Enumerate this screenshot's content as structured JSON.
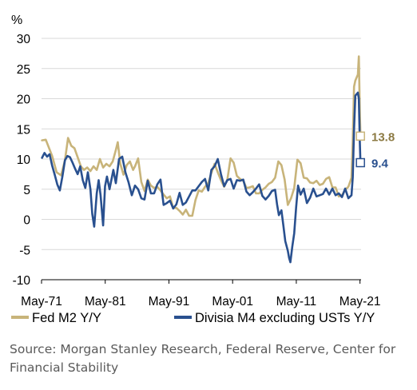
{
  "chart_data": {
    "type": "line",
    "ylabel": "%",
    "ylim": [
      -10,
      30
    ],
    "yticks": [
      -10,
      -5,
      0,
      5,
      10,
      15,
      20,
      25,
      30
    ],
    "xlim": [
      1971.33,
      2021.5
    ],
    "xticks": [
      {
        "x": 1971.33,
        "label": "May-71"
      },
      {
        "x": 1981.33,
        "label": "May-81"
      },
      {
        "x": 1991.33,
        "label": "May-91"
      },
      {
        "x": 2001.33,
        "label": "May-01"
      },
      {
        "x": 2011.33,
        "label": "May-11"
      },
      {
        "x": 2021.33,
        "label": "May-21"
      }
    ],
    "grid": "horizontal",
    "legend_position": "bottom",
    "series": [
      {
        "name": "Fed M2 Y/Y",
        "color": "#c8b47a",
        "end_label": "13.8",
        "x": [
          1971.4,
          1972,
          1973,
          1973.7,
          1974.4,
          1975,
          1975.5,
          1976,
          1976.5,
          1977,
          1977.5,
          1978,
          1978.5,
          1979,
          1979.5,
          1980,
          1980.5,
          1981,
          1981.5,
          1982,
          1982.5,
          1983,
          1983.3,
          1983.7,
          1984.2,
          1984.7,
          1985.2,
          1985.7,
          1986,
          1986.5,
          1987,
          1987.5,
          1988,
          1988.5,
          1989,
          1989.5,
          1990,
          1990.5,
          1991,
          1991.5,
          1992,
          1992.5,
          1993,
          1993.5,
          1994,
          1994.5,
          1995,
          1995.5,
          1996,
          1996.5,
          1997,
          1997.5,
          1998,
          1998.5,
          1999,
          1999.5,
          2000,
          2000.5,
          2001,
          2001.5,
          2002,
          2002.5,
          2003,
          2003.5,
          2004,
          2004.5,
          2005,
          2005.5,
          2006,
          2006.5,
          2007,
          2007.5,
          2008,
          2008.5,
          2009,
          2009.5,
          2010,
          2010.5,
          2011,
          2011.5,
          2012,
          2012.5,
          2013,
          2013.5,
          2014,
          2014.5,
          2015,
          2015.5,
          2016,
          2016.5,
          2017,
          2017.5,
          2018,
          2018.5,
          2019,
          2019.5,
          2020,
          2020.2,
          2020.4,
          2020.6,
          2021,
          2021.15,
          2021.3,
          2021.4
        ],
        "y": [
          13.1,
          13.2,
          10.5,
          7.8,
          7.3,
          9.8,
          13.5,
          12.2,
          11.8,
          10.3,
          8.8,
          8.2,
          8.6,
          8.0,
          8.8,
          8.2,
          10.0,
          8.6,
          9.2,
          8.8,
          9.6,
          11.5,
          12.8,
          9.2,
          7.4,
          9.0,
          9.6,
          8.2,
          8.8,
          10.1,
          6.2,
          4.7,
          6.6,
          5.6,
          5.2,
          5.4,
          4.8,
          4.1,
          3.5,
          3.8,
          1.9,
          1.9,
          1.4,
          0.8,
          1.6,
          0.6,
          0.6,
          3.2,
          4.8,
          4.6,
          5.4,
          6.0,
          7.7,
          9.2,
          7.8,
          6.5,
          5.4,
          6.6,
          10.1,
          9.4,
          7.2,
          6.7,
          6.4,
          5.2,
          5.3,
          5.5,
          4.3,
          4.3,
          4.9,
          5.3,
          5.9,
          6.2,
          6.9,
          9.6,
          9.0,
          6.6,
          2.4,
          3.5,
          5.2,
          9.9,
          9.3,
          6.9,
          6.8,
          6.1,
          6.0,
          6.4,
          5.7,
          5.9,
          6.7,
          7.0,
          5.3,
          5.3,
          3.8,
          4.0,
          4.9,
          5.4,
          6.9,
          13.0,
          22.0,
          23.0,
          24.0,
          27.0,
          18.0,
          13.8
        ]
      },
      {
        "name": "Divisia M4 excluding USTs Y/Y",
        "color": "#29508f",
        "end_label": "9.4",
        "x": [
          1971.4,
          1971.8,
          1972.2,
          1972.6,
          1973,
          1973.4,
          1973.8,
          1974.2,
          1974.6,
          1975,
          1975.4,
          1975.8,
          1976.2,
          1976.6,
          1977,
          1977.4,
          1977.8,
          1978.2,
          1978.6,
          1979,
          1979.3,
          1979.6,
          1980,
          1980.3,
          1980.6,
          1981,
          1981.3,
          1981.6,
          1982,
          1982.3,
          1982.6,
          1983,
          1983.5,
          1984,
          1984.5,
          1985,
          1985.5,
          1986,
          1986.5,
          1987,
          1987.5,
          1988,
          1988.5,
          1989,
          1989.5,
          1990,
          1990.5,
          1991,
          1991.5,
          1992,
          1992.5,
          1993,
          1993.5,
          1994,
          1994.5,
          1995,
          1995.5,
          1996,
          1996.5,
          1997,
          1997.5,
          1998,
          1998.5,
          1999,
          1999.5,
          2000,
          2000.5,
          2001,
          2001.5,
          2002,
          2002.5,
          2003,
          2003.5,
          2004,
          2004.5,
          2005,
          2005.5,
          2006,
          2006.5,
          2007,
          2007.5,
          2008,
          2008.3,
          2008.6,
          2009,
          2009.3,
          2009.6,
          2010,
          2010.2,
          2010.4,
          2010.7,
          2011,
          2011.3,
          2011.6,
          2012,
          2012.5,
          2013,
          2013.5,
          2014,
          2014.5,
          2015,
          2015.5,
          2016,
          2016.5,
          2017,
          2017.5,
          2018,
          2018.5,
          2019,
          2019.5,
          2020,
          2020.2,
          2020.4,
          2020.6,
          2021,
          2021.15,
          2021.3,
          2021.4
        ],
        "y": [
          10.2,
          11.0,
          10.4,
          10.8,
          8.9,
          7.4,
          5.8,
          4.8,
          7.1,
          9.8,
          10.5,
          10.3,
          9.4,
          8.4,
          7.5,
          8.8,
          6.5,
          5.2,
          7.8,
          5.0,
          0.9,
          -1.2,
          4.3,
          6.5,
          4.0,
          -1.0,
          5.5,
          7.1,
          5.0,
          6.6,
          8.2,
          6.0,
          10.0,
          10.4,
          7.8,
          6.1,
          4.0,
          5.6,
          5.0,
          3.5,
          3.3,
          6.4,
          4.3,
          4.3,
          5.8,
          6.6,
          2.4,
          2.7,
          3.1,
          1.8,
          2.5,
          4.4,
          2.4,
          2.8,
          3.8,
          4.8,
          4.8,
          5.5,
          6.2,
          6.7,
          4.8,
          8.2,
          8.8,
          10.0,
          7.5,
          5.5,
          6.5,
          6.7,
          5.1,
          6.5,
          6.4,
          6.6,
          4.6,
          4.0,
          4.5,
          5.1,
          5.8,
          3.9,
          3.3,
          3.9,
          4.7,
          4.9,
          2.5,
          0.7,
          1.5,
          -1.0,
          -3.6,
          -5.2,
          -6.4,
          -7.1,
          -4.5,
          -2.3,
          2.0,
          5.6,
          4.1,
          5.1,
          2.7,
          3.6,
          5.1,
          3.8,
          4.0,
          4.2,
          5.1,
          4.1,
          5.1,
          4.0,
          4.3,
          3.7,
          5.1,
          3.5,
          4.0,
          7.0,
          15.0,
          20.5,
          21.0,
          20.0,
          13.0,
          9.4
        ]
      }
    ]
  },
  "source": "Source: Morgan Stanley Research, Federal Reserve, Center for Financial Stability"
}
